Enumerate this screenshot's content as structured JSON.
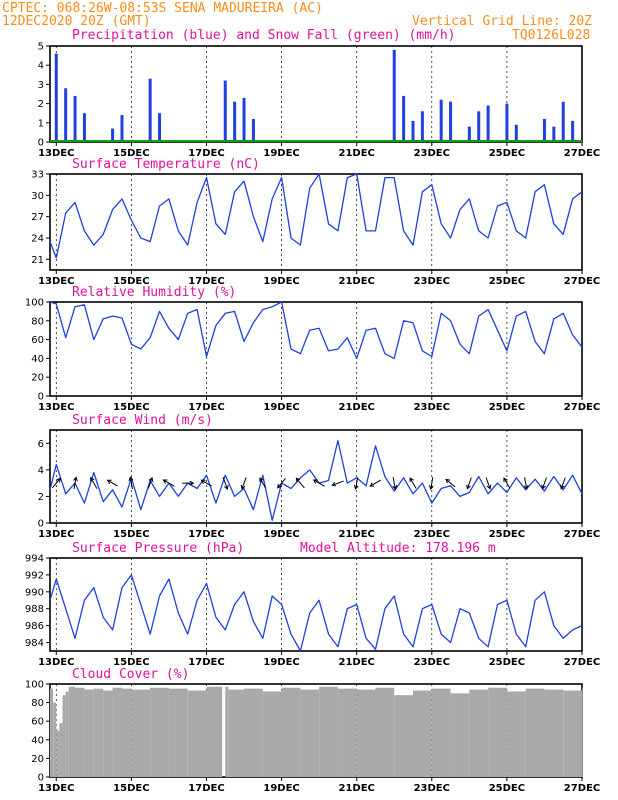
{
  "header": {
    "line1": "CPTEC:   068:26W-08:53S  SENA MADUREIRA (AC)",
    "line2": "12DEC2020 20Z (GMT)",
    "grid_note": "Vertical Grid Line: 20Z",
    "product_code": "TQ0126L028"
  },
  "colors": {
    "header": "#ff8c1a",
    "panel_title": "#e0129a",
    "series": "#2040e0",
    "snow": "#10a010",
    "cloud": "#a9a9a9",
    "axis": "#000000"
  },
  "x_axis": {
    "start_day": 12.833,
    "end_day": 27.0,
    "ticks": [
      {
        "day": 13,
        "label": "13DEC"
      },
      {
        "day": 15,
        "label": "15DEC"
      },
      {
        "day": 17,
        "label": "17DEC"
      },
      {
        "day": 19,
        "label": "19DEC"
      },
      {
        "day": 21,
        "label": "21DEC"
      },
      {
        "day": 23,
        "label": "23DEC"
      },
      {
        "day": 25,
        "label": "25DEC"
      },
      {
        "day": 27,
        "label": "27DEC"
      }
    ]
  },
  "chart_data": [
    {
      "type": "bar",
      "id": "precip",
      "title": "Precipitation (blue) and Snow Fall (green) (mm/h)",
      "ylim": [
        0,
        5
      ],
      "yticks": [
        0,
        1,
        2,
        3,
        4,
        5
      ],
      "x_unit": "day of December 2020 (GMT)",
      "series": [
        {
          "name": "Precipitation",
          "x": [
            13.0,
            13.25,
            13.5,
            13.75,
            14.5,
            14.75,
            15.5,
            15.75,
            17.5,
            17.75,
            18.0,
            18.25,
            22.0,
            22.25,
            22.5,
            22.75,
            23.25,
            23.5,
            24.0,
            24.25,
            24.5,
            25.0,
            25.25,
            26.0,
            26.25,
            26.5,
            26.75
          ],
          "values": [
            4.6,
            2.8,
            2.4,
            1.5,
            0.7,
            1.4,
            3.3,
            1.5,
            3.2,
            2.1,
            2.3,
            1.2,
            4.8,
            2.4,
            1.1,
            1.6,
            2.2,
            2.1,
            0.8,
            1.6,
            1.9,
            2.0,
            0.9,
            1.2,
            0.8,
            2.1,
            1.1
          ]
        },
        {
          "name": "Snow Fall",
          "x": [
            12.833,
            27.0
          ],
          "values": [
            0,
            0
          ]
        }
      ]
    },
    {
      "type": "line",
      "id": "temp",
      "title": "Surface Temperature (nC)",
      "ylim": [
        19.5,
        33
      ],
      "yticks": [
        21,
        24,
        27,
        30,
        33
      ],
      "x": [
        12.833,
        13.0,
        13.25,
        13.5,
        13.75,
        14.0,
        14.25,
        14.5,
        14.75,
        15.0,
        15.25,
        15.5,
        15.75,
        16.0,
        16.25,
        16.5,
        16.75,
        17.0,
        17.25,
        17.5,
        17.75,
        18.0,
        18.25,
        18.5,
        18.75,
        19.0,
        19.25,
        19.5,
        19.75,
        20.0,
        20.25,
        20.5,
        20.75,
        21.0,
        21.25,
        21.5,
        21.75,
        22.0,
        22.25,
        22.5,
        22.75,
        23.0,
        23.25,
        23.5,
        23.75,
        24.0,
        24.25,
        24.5,
        24.75,
        25.0,
        25.25,
        25.5,
        25.75,
        26.0,
        26.25,
        26.5,
        26.75,
        27.0
      ],
      "values": [
        23.5,
        21.2,
        27.5,
        29.0,
        25.0,
        23.0,
        24.5,
        28.0,
        29.5,
        26.5,
        24.0,
        23.5,
        28.5,
        29.5,
        25.0,
        23.0,
        29.0,
        32.5,
        26.0,
        24.5,
        30.5,
        32.0,
        27.0,
        23.5,
        29.5,
        32.5,
        24.0,
        23.0,
        31.0,
        33.0,
        26.0,
        25.0,
        32.5,
        33.0,
        25.0,
        25.0,
        32.5,
        32.5,
        25.0,
        23.0,
        30.5,
        31.5,
        26.0,
        24.0,
        28.0,
        29.5,
        25.0,
        24.0,
        28.5,
        29.0,
        25.0,
        24.0,
        30.5,
        31.5,
        26.0,
        24.5,
        29.5,
        30.5
      ]
    },
    {
      "type": "line",
      "id": "rh",
      "title": "Relative Humidity (%)",
      "ylim": [
        0,
        100
      ],
      "yticks": [
        0,
        20,
        40,
        60,
        80,
        100
      ],
      "x": [
        12.833,
        13.0,
        13.25,
        13.5,
        13.75,
        14.0,
        14.25,
        14.5,
        14.75,
        15.0,
        15.25,
        15.5,
        15.75,
        16.0,
        16.25,
        16.5,
        16.75,
        17.0,
        17.25,
        17.5,
        17.75,
        18.0,
        18.25,
        18.5,
        18.75,
        19.0,
        19.25,
        19.5,
        19.75,
        20.0,
        20.25,
        20.5,
        20.75,
        21.0,
        21.25,
        21.5,
        21.75,
        22.0,
        22.25,
        22.5,
        22.75,
        23.0,
        23.25,
        23.5,
        23.75,
        24.0,
        24.25,
        24.5,
        24.75,
        25.0,
        25.25,
        25.5,
        25.75,
        26.0,
        26.25,
        26.5,
        26.75,
        27.0
      ],
      "values": [
        100,
        98,
        62,
        95,
        97,
        60,
        82,
        85,
        83,
        55,
        50,
        62,
        90,
        72,
        60,
        88,
        92,
        42,
        75,
        88,
        90,
        58,
        78,
        92,
        95,
        100,
        50,
        45,
        70,
        72,
        48,
        50,
        62,
        40,
        70,
        72,
        45,
        40,
        80,
        78,
        48,
        42,
        88,
        80,
        55,
        45,
        85,
        92,
        70,
        48,
        85,
        90,
        58,
        45,
        82,
        88,
        65,
        52
      ]
    },
    {
      "type": "line",
      "id": "wind",
      "title": "Surface Wind (m/s)",
      "ylim": [
        0,
        7
      ],
      "yticks": [
        0,
        2,
        4,
        6
      ],
      "x": [
        12.833,
        13.0,
        13.25,
        13.5,
        13.75,
        14.0,
        14.25,
        14.5,
        14.75,
        15.0,
        15.25,
        15.5,
        15.75,
        16.0,
        16.25,
        16.5,
        16.75,
        17.0,
        17.25,
        17.5,
        17.75,
        18.0,
        18.25,
        18.5,
        18.75,
        19.0,
        19.25,
        19.5,
        19.75,
        20.0,
        20.25,
        20.5,
        20.75,
        21.0,
        21.25,
        21.5,
        21.75,
        22.0,
        22.25,
        22.5,
        22.75,
        23.0,
        23.25,
        23.5,
        23.75,
        24.0,
        24.25,
        24.5,
        24.75,
        25.0,
        25.25,
        25.5,
        25.75,
        26.0,
        26.25,
        26.5,
        26.75,
        27.0
      ],
      "values": [
        2.5,
        4.4,
        2.2,
        3.0,
        1.5,
        3.8,
        1.6,
        2.5,
        1.2,
        3.4,
        1.0,
        3.2,
        2.0,
        3.0,
        2.0,
        3.0,
        2.6,
        3.6,
        1.5,
        3.6,
        2.0,
        2.6,
        1.0,
        3.6,
        0.2,
        3.0,
        2.6,
        3.4,
        4.0,
        3.0,
        3.2,
        6.2,
        3.0,
        3.4,
        2.8,
        5.8,
        3.5,
        2.4,
        3.4,
        2.2,
        3.0,
        1.5,
        2.6,
        2.8,
        2.0,
        2.3,
        3.5,
        2.2,
        3.0,
        2.3,
        3.4,
        2.5,
        3.3,
        2.4,
        3.5,
        2.5,
        3.6,
        2.2
      ],
      "vectors": [
        {
          "x": 13.0,
          "speed": 2.8,
          "dir_deg": 40
        },
        {
          "x": 13.5,
          "speed": 2.6,
          "dir_deg": 10
        },
        {
          "x": 14.0,
          "speed": 3.0,
          "dir_deg": 330
        },
        {
          "x": 14.5,
          "speed": 2.5,
          "dir_deg": 300
        },
        {
          "x": 15.0,
          "speed": 2.8,
          "dir_deg": 350
        },
        {
          "x": 15.5,
          "speed": 2.4,
          "dir_deg": 20
        },
        {
          "x": 16.0,
          "speed": 3.0,
          "dir_deg": 300
        },
        {
          "x": 16.5,
          "speed": 2.4,
          "dir_deg": 90
        },
        {
          "x": 17.0,
          "speed": 2.6,
          "dir_deg": 300
        },
        {
          "x": 17.5,
          "speed": 3.0,
          "dir_deg": 160
        },
        {
          "x": 18.0,
          "speed": 2.8,
          "dir_deg": 200
        },
        {
          "x": 18.5,
          "speed": 2.5,
          "dir_deg": 330
        },
        {
          "x": 19.0,
          "speed": 2.8,
          "dir_deg": 220
        },
        {
          "x": 19.5,
          "speed": 3.0,
          "dir_deg": 320
        },
        {
          "x": 20.0,
          "speed": 3.0,
          "dir_deg": 300
        },
        {
          "x": 20.5,
          "speed": 2.8,
          "dir_deg": 250
        },
        {
          "x": 21.0,
          "speed": 2.6,
          "dir_deg": 190
        },
        {
          "x": 21.5,
          "speed": 2.8,
          "dir_deg": 240
        },
        {
          "x": 22.0,
          "speed": 2.8,
          "dir_deg": 170
        },
        {
          "x": 22.5,
          "speed": 2.6,
          "dir_deg": 330
        },
        {
          "x": 23.0,
          "speed": 2.8,
          "dir_deg": 190
        },
        {
          "x": 23.5,
          "speed": 2.6,
          "dir_deg": 310
        },
        {
          "x": 24.0,
          "speed": 2.6,
          "dir_deg": 200
        },
        {
          "x": 24.5,
          "speed": 2.6,
          "dir_deg": 160
        },
        {
          "x": 25.0,
          "speed": 2.6,
          "dir_deg": 330
        },
        {
          "x": 25.5,
          "speed": 2.6,
          "dir_deg": 170
        },
        {
          "x": 26.0,
          "speed": 2.6,
          "dir_deg": 200
        },
        {
          "x": 26.5,
          "speed": 2.6,
          "dir_deg": 200
        }
      ]
    },
    {
      "type": "line",
      "id": "pressure",
      "title": "Surface Pressure (hPa)",
      "subtitle": "Model Altitude: 178.196 m",
      "ylim": [
        983,
        994
      ],
      "yticks": [
        984,
        986,
        988,
        990,
        992,
        994
      ],
      "x": [
        12.833,
        13.0,
        13.25,
        13.5,
        13.75,
        14.0,
        14.25,
        14.5,
        14.75,
        15.0,
        15.25,
        15.5,
        15.75,
        16.0,
        16.25,
        16.5,
        16.75,
        17.0,
        17.25,
        17.5,
        17.75,
        18.0,
        18.25,
        18.5,
        18.75,
        19.0,
        19.25,
        19.5,
        19.75,
        20.0,
        20.25,
        20.5,
        20.75,
        21.0,
        21.25,
        21.5,
        21.75,
        22.0,
        22.25,
        22.5,
        22.75,
        23.0,
        23.25,
        23.5,
        23.75,
        24.0,
        24.25,
        24.5,
        24.75,
        25.0,
        25.25,
        25.5,
        25.75,
        26.0,
        26.25,
        26.5,
        26.75,
        27.0
      ],
      "values": [
        989.0,
        991.5,
        988.0,
        984.5,
        989.0,
        990.5,
        987.0,
        985.5,
        990.5,
        992.0,
        988.5,
        985.0,
        989.5,
        991.5,
        987.5,
        985.0,
        989.0,
        991.0,
        987.0,
        985.5,
        988.5,
        990.0,
        986.5,
        984.5,
        989.5,
        988.5,
        985.0,
        983.0,
        987.5,
        989.0,
        985.0,
        983.5,
        988.0,
        988.5,
        984.5,
        983.2,
        988.0,
        989.5,
        985.0,
        983.5,
        988.0,
        988.5,
        985.0,
        984.0,
        988.0,
        987.5,
        984.5,
        983.5,
        988.5,
        989.0,
        985.0,
        983.5,
        989.0,
        990.0,
        986.0,
        984.5,
        985.5,
        986.0
      ]
    },
    {
      "type": "bar",
      "id": "cloud",
      "title": "Cloud Cover (%)",
      "ylim": [
        0,
        100
      ],
      "yticks": [
        0,
        20,
        40,
        60,
        80,
        100
      ],
      "x": [
        12.833,
        12.917,
        13.0,
        13.083,
        13.167,
        13.25,
        13.333,
        13.5,
        13.75,
        14.0,
        14.25,
        14.5,
        14.75,
        15.0,
        15.5,
        16.0,
        16.5,
        17.0,
        17.417,
        17.5,
        17.583,
        18.0,
        18.5,
        19.0,
        19.5,
        20.0,
        20.5,
        21.0,
        21.5,
        22.0,
        22.5,
        23.0,
        23.5,
        24.0,
        24.5,
        25.0,
        25.5,
        26.0,
        26.5,
        27.0
      ],
      "values": [
        95,
        80,
        50,
        58,
        88,
        92,
        97,
        96,
        94,
        95,
        93,
        96,
        95,
        94,
        96,
        95,
        93,
        97,
        0,
        97,
        94,
        95,
        92,
        96,
        94,
        97,
        95,
        94,
        96,
        88,
        93,
        95,
        90,
        94,
        96,
        92,
        95,
        94,
        93,
        96
      ]
    }
  ]
}
